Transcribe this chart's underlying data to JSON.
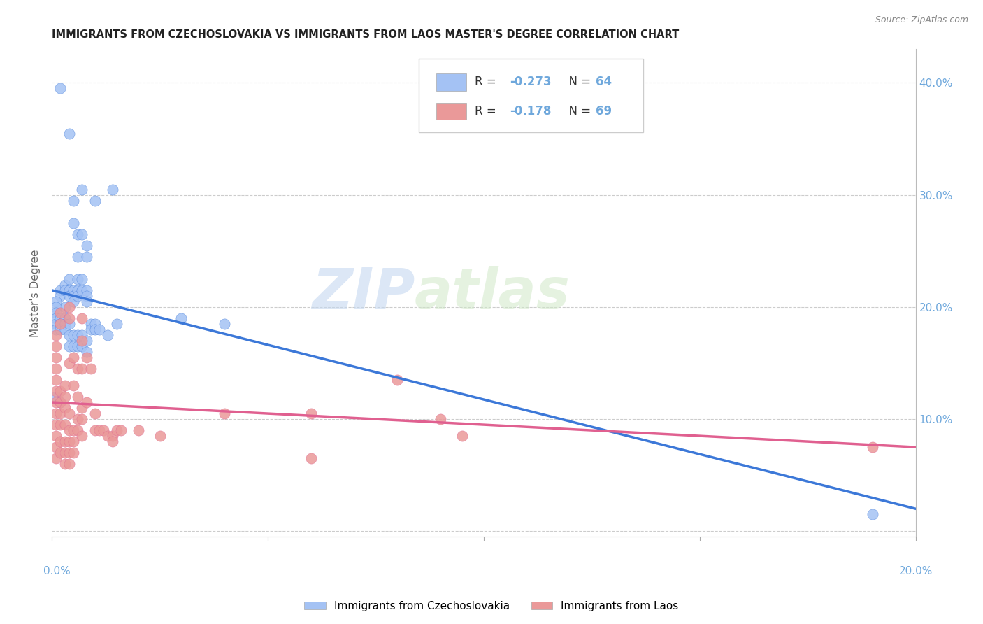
{
  "title": "IMMIGRANTS FROM CZECHOSLOVAKIA VS IMMIGRANTS FROM LAOS MASTER'S DEGREE CORRELATION CHART",
  "source": "Source: ZipAtlas.com",
  "ylabel": "Master's Degree",
  "xlim": [
    0,
    0.2
  ],
  "ylim": [
    -0.005,
    0.43
  ],
  "color_blue": "#a4c2f4",
  "color_pink": "#ea9999",
  "color_line_blue": "#3c78d8",
  "color_line_pink": "#e06090",
  "color_tick": "#6fa8dc",
  "watermark_zip": "ZIP",
  "watermark_atlas": "atlas",
  "blue_scatter": [
    [
      0.002,
      0.395
    ],
    [
      0.004,
      0.355
    ],
    [
      0.005,
      0.295
    ],
    [
      0.005,
      0.275
    ],
    [
      0.006,
      0.265
    ],
    [
      0.006,
      0.245
    ],
    [
      0.007,
      0.305
    ],
    [
      0.007,
      0.265
    ],
    [
      0.008,
      0.255
    ],
    [
      0.008,
      0.245
    ],
    [
      0.01,
      0.295
    ],
    [
      0.014,
      0.305
    ],
    [
      0.002,
      0.215
    ],
    [
      0.002,
      0.21
    ],
    [
      0.003,
      0.22
    ],
    [
      0.003,
      0.215
    ],
    [
      0.003,
      0.2
    ],
    [
      0.004,
      0.225
    ],
    [
      0.004,
      0.215
    ],
    [
      0.004,
      0.21
    ],
    [
      0.005,
      0.215
    ],
    [
      0.005,
      0.21
    ],
    [
      0.005,
      0.205
    ],
    [
      0.006,
      0.225
    ],
    [
      0.006,
      0.215
    ],
    [
      0.006,
      0.21
    ],
    [
      0.007,
      0.225
    ],
    [
      0.007,
      0.215
    ],
    [
      0.008,
      0.215
    ],
    [
      0.008,
      0.21
    ],
    [
      0.008,
      0.205
    ],
    [
      0.001,
      0.205
    ],
    [
      0.001,
      0.2
    ],
    [
      0.001,
      0.195
    ],
    [
      0.001,
      0.19
    ],
    [
      0.001,
      0.185
    ],
    [
      0.001,
      0.18
    ],
    [
      0.002,
      0.19
    ],
    [
      0.002,
      0.185
    ],
    [
      0.002,
      0.18
    ],
    [
      0.003,
      0.19
    ],
    [
      0.003,
      0.185
    ],
    [
      0.003,
      0.18
    ],
    [
      0.004,
      0.185
    ],
    [
      0.004,
      0.175
    ],
    [
      0.004,
      0.165
    ],
    [
      0.005,
      0.175
    ],
    [
      0.005,
      0.165
    ],
    [
      0.006,
      0.175
    ],
    [
      0.006,
      0.165
    ],
    [
      0.007,
      0.175
    ],
    [
      0.007,
      0.165
    ],
    [
      0.008,
      0.17
    ],
    [
      0.008,
      0.16
    ],
    [
      0.009,
      0.185
    ],
    [
      0.009,
      0.18
    ],
    [
      0.01,
      0.185
    ],
    [
      0.01,
      0.18
    ],
    [
      0.011,
      0.18
    ],
    [
      0.013,
      0.175
    ],
    [
      0.015,
      0.185
    ],
    [
      0.03,
      0.19
    ],
    [
      0.04,
      0.185
    ],
    [
      0.001,
      0.12
    ],
    [
      0.002,
      0.115
    ],
    [
      0.19,
      0.015
    ]
  ],
  "pink_scatter": [
    [
      0.001,
      0.175
    ],
    [
      0.001,
      0.165
    ],
    [
      0.001,
      0.155
    ],
    [
      0.001,
      0.145
    ],
    [
      0.001,
      0.135
    ],
    [
      0.001,
      0.125
    ],
    [
      0.001,
      0.115
    ],
    [
      0.001,
      0.105
    ],
    [
      0.001,
      0.095
    ],
    [
      0.001,
      0.085
    ],
    [
      0.001,
      0.075
    ],
    [
      0.001,
      0.065
    ],
    [
      0.002,
      0.195
    ],
    [
      0.002,
      0.185
    ],
    [
      0.002,
      0.125
    ],
    [
      0.002,
      0.115
    ],
    [
      0.002,
      0.105
    ],
    [
      0.002,
      0.095
    ],
    [
      0.002,
      0.08
    ],
    [
      0.002,
      0.07
    ],
    [
      0.003,
      0.13
    ],
    [
      0.003,
      0.12
    ],
    [
      0.003,
      0.11
    ],
    [
      0.003,
      0.095
    ],
    [
      0.003,
      0.08
    ],
    [
      0.003,
      0.07
    ],
    [
      0.003,
      0.06
    ],
    [
      0.004,
      0.2
    ],
    [
      0.004,
      0.19
    ],
    [
      0.004,
      0.15
    ],
    [
      0.004,
      0.105
    ],
    [
      0.004,
      0.09
    ],
    [
      0.004,
      0.08
    ],
    [
      0.004,
      0.07
    ],
    [
      0.004,
      0.06
    ],
    [
      0.005,
      0.155
    ],
    [
      0.005,
      0.13
    ],
    [
      0.005,
      0.09
    ],
    [
      0.005,
      0.08
    ],
    [
      0.005,
      0.07
    ],
    [
      0.006,
      0.145
    ],
    [
      0.006,
      0.12
    ],
    [
      0.006,
      0.1
    ],
    [
      0.006,
      0.09
    ],
    [
      0.007,
      0.19
    ],
    [
      0.007,
      0.17
    ],
    [
      0.007,
      0.145
    ],
    [
      0.007,
      0.11
    ],
    [
      0.007,
      0.1
    ],
    [
      0.007,
      0.085
    ],
    [
      0.008,
      0.155
    ],
    [
      0.008,
      0.115
    ],
    [
      0.009,
      0.145
    ],
    [
      0.01,
      0.105
    ],
    [
      0.01,
      0.09
    ],
    [
      0.011,
      0.09
    ],
    [
      0.012,
      0.09
    ],
    [
      0.013,
      0.085
    ],
    [
      0.014,
      0.085
    ],
    [
      0.014,
      0.08
    ],
    [
      0.015,
      0.09
    ],
    [
      0.016,
      0.09
    ],
    [
      0.02,
      0.09
    ],
    [
      0.025,
      0.085
    ],
    [
      0.04,
      0.105
    ],
    [
      0.06,
      0.105
    ],
    [
      0.06,
      0.065
    ],
    [
      0.08,
      0.135
    ],
    [
      0.09,
      0.1
    ],
    [
      0.095,
      0.085
    ],
    [
      0.19,
      0.075
    ]
  ],
  "blue_line_x": [
    0.0,
    0.2
  ],
  "blue_line_y": [
    0.215,
    0.02
  ],
  "pink_line_x": [
    0.0,
    0.2
  ],
  "pink_line_y": [
    0.115,
    0.075
  ]
}
